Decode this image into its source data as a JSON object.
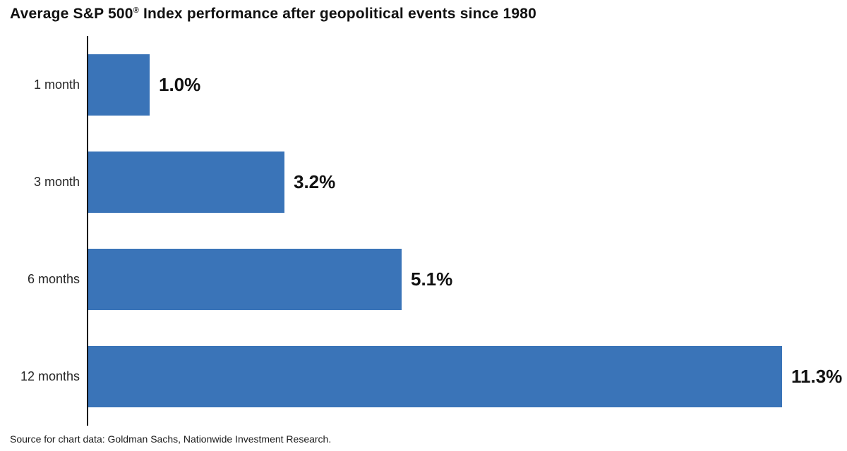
{
  "title": {
    "prefix": "Average S&P 500",
    "registered_mark": "®",
    "suffix": " Index performance after geopolitical events since 1980"
  },
  "chart_data": {
    "type": "bar",
    "orientation": "horizontal",
    "title": "Average S&P 500® Index performance after geopolitical events since 1980",
    "categories": [
      "1 month",
      "3 month",
      "6 months",
      "12 months"
    ],
    "values": [
      1.0,
      3.2,
      5.1,
      11.3
    ],
    "value_labels": [
      "1.0%",
      "3.2%",
      "5.1%",
      "11.3%"
    ],
    "unit": "percent",
    "xlim": [
      0,
      11.3
    ],
    "bar_color": "#3a74b8",
    "axis_color": "#000000",
    "grid": false,
    "legend": "none"
  },
  "footer": {
    "source": "Source for chart data: Goldman Sachs, Nationwide Investment Research."
  }
}
